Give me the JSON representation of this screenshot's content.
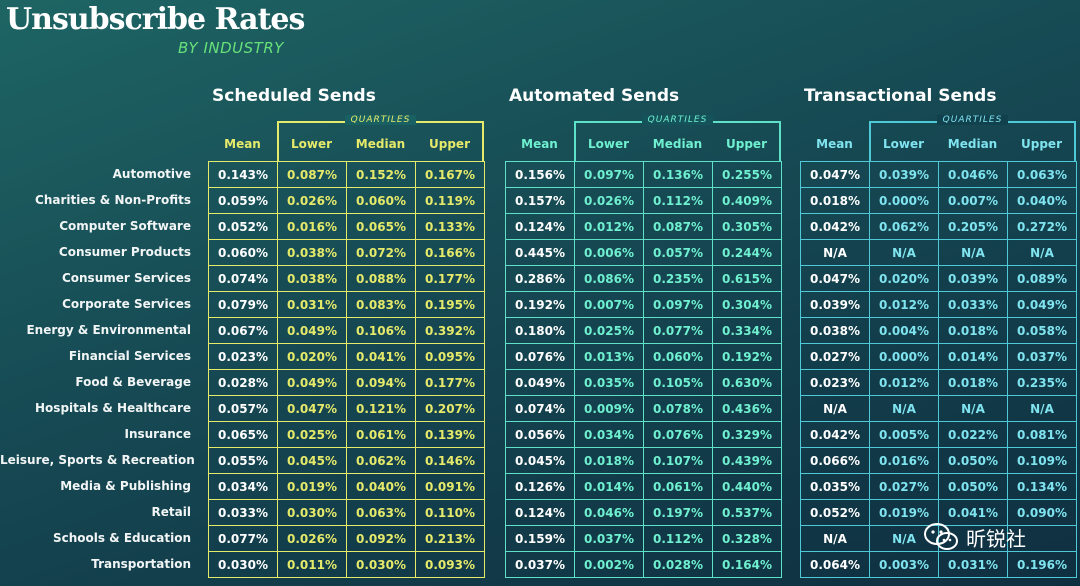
{
  "header": {
    "title": "Unsubscribe Rates",
    "subtitle": "BY INDUSTRY"
  },
  "quartiles_label": "QUARTILES",
  "column_headers": [
    "Mean",
    "Lower",
    "Median",
    "Upper"
  ],
  "rows": [
    "Automotive",
    "Charities & Non-Profits",
    "Computer Software",
    "Consumer Products",
    "Consumer Services",
    "Corporate Services",
    "Energy & Environmental",
    "Financial Services",
    "Food & Beverage",
    "Hospitals & Healthcare",
    "Insurance",
    "Leisure, Sports & Recreation",
    "Media & Publishing",
    "Retail",
    "Schools & Education",
    "Transportation"
  ],
  "colors": {
    "scheduled": "#e6ea6a",
    "automated": "#5fe0c8",
    "transactional": "#4fc8d8"
  },
  "groups": [
    {
      "title": "Scheduled Sends",
      "cells": [
        [
          "0.143%",
          "0.087%",
          "0.152%",
          "0.167%"
        ],
        [
          "0.059%",
          "0.026%",
          "0.060%",
          "0.119%"
        ],
        [
          "0.052%",
          "0.016%",
          "0.065%",
          "0.133%"
        ],
        [
          "0.060%",
          "0.038%",
          "0.072%",
          "0.166%"
        ],
        [
          "0.074%",
          "0.038%",
          "0.088%",
          "0.177%"
        ],
        [
          "0.079%",
          "0.031%",
          "0.083%",
          "0.195%"
        ],
        [
          "0.067%",
          "0.049%",
          "0.106%",
          "0.392%"
        ],
        [
          "0.023%",
          "0.020%",
          "0.041%",
          "0.095%"
        ],
        [
          "0.028%",
          "0.049%",
          "0.094%",
          "0.177%"
        ],
        [
          "0.057%",
          "0.047%",
          "0.121%",
          "0.207%"
        ],
        [
          "0.065%",
          "0.025%",
          "0.061%",
          "0.139%"
        ],
        [
          "0.055%",
          "0.045%",
          "0.062%",
          "0.146%"
        ],
        [
          "0.034%",
          "0.019%",
          "0.040%",
          "0.091%"
        ],
        [
          "0.033%",
          "0.030%",
          "0.063%",
          "0.110%"
        ],
        [
          "0.077%",
          "0.026%",
          "0.092%",
          "0.213%"
        ],
        [
          "0.030%",
          "0.011%",
          "0.030%",
          "0.093%"
        ]
      ]
    },
    {
      "title": "Automated Sends",
      "cells": [
        [
          "0.156%",
          "0.097%",
          "0.136%",
          "0.255%"
        ],
        [
          "0.157%",
          "0.026%",
          "0.112%",
          "0.409%"
        ],
        [
          "0.124%",
          "0.012%",
          "0.087%",
          "0.305%"
        ],
        [
          "0.445%",
          "0.006%",
          "0.057%",
          "0.244%"
        ],
        [
          "0.286%",
          "0.086%",
          "0.235%",
          "0.615%"
        ],
        [
          "0.192%",
          "0.007%",
          "0.097%",
          "0.304%"
        ],
        [
          "0.180%",
          "0.025%",
          "0.077%",
          "0.334%"
        ],
        [
          "0.076%",
          "0.013%",
          "0.060%",
          "0.192%"
        ],
        [
          "0.049%",
          "0.035%",
          "0.105%",
          "0.630%"
        ],
        [
          "0.074%",
          "0.009%",
          "0.078%",
          "0.436%"
        ],
        [
          "0.056%",
          "0.034%",
          "0.076%",
          "0.329%"
        ],
        [
          "0.045%",
          "0.018%",
          "0.107%",
          "0.439%"
        ],
        [
          "0.126%",
          "0.014%",
          "0.061%",
          "0.440%"
        ],
        [
          "0.124%",
          "0.046%",
          "0.197%",
          "0.537%"
        ],
        [
          "0.159%",
          "0.037%",
          "0.112%",
          "0.328%"
        ],
        [
          "0.037%",
          "0.002%",
          "0.028%",
          "0.164%"
        ]
      ]
    },
    {
      "title": "Transactional Sends",
      "cells": [
        [
          "0.047%",
          "0.039%",
          "0.046%",
          "0.063%"
        ],
        [
          "0.018%",
          "0.000%",
          "0.007%",
          "0.040%"
        ],
        [
          "0.042%",
          "0.062%",
          "0.205%",
          "0.272%"
        ],
        [
          "N/A",
          "N/A",
          "N/A",
          "N/A"
        ],
        [
          "0.047%",
          "0.020%",
          "0.039%",
          "0.089%"
        ],
        [
          "0.039%",
          "0.012%",
          "0.033%",
          "0.049%"
        ],
        [
          "0.038%",
          "0.004%",
          "0.018%",
          "0.058%"
        ],
        [
          "0.027%",
          "0.000%",
          "0.014%",
          "0.037%"
        ],
        [
          "0.023%",
          "0.012%",
          "0.018%",
          "0.235%"
        ],
        [
          "N/A",
          "N/A",
          "N/A",
          "N/A"
        ],
        [
          "0.042%",
          "0.005%",
          "0.022%",
          "0.081%"
        ],
        [
          "0.066%",
          "0.016%",
          "0.050%",
          "0.109%"
        ],
        [
          "0.035%",
          "0.027%",
          "0.050%",
          "0.134%"
        ],
        [
          "0.052%",
          "0.019%",
          "0.041%",
          "0.090%"
        ],
        [
          "N/A",
          "N/A",
          "",
          ""
        ],
        [
          "0.064%",
          "0.003%",
          "0.031%",
          "0.196%"
        ]
      ]
    }
  ],
  "chart_data": {
    "type": "table",
    "title": "Unsubscribe Rates",
    "subtitle": "BY INDUSTRY",
    "columns": [
      "Mean",
      "Lower",
      "Median",
      "Upper"
    ]
  },
  "watermark": {
    "text": "昕锐社",
    "icon": "wechat-icon"
  }
}
